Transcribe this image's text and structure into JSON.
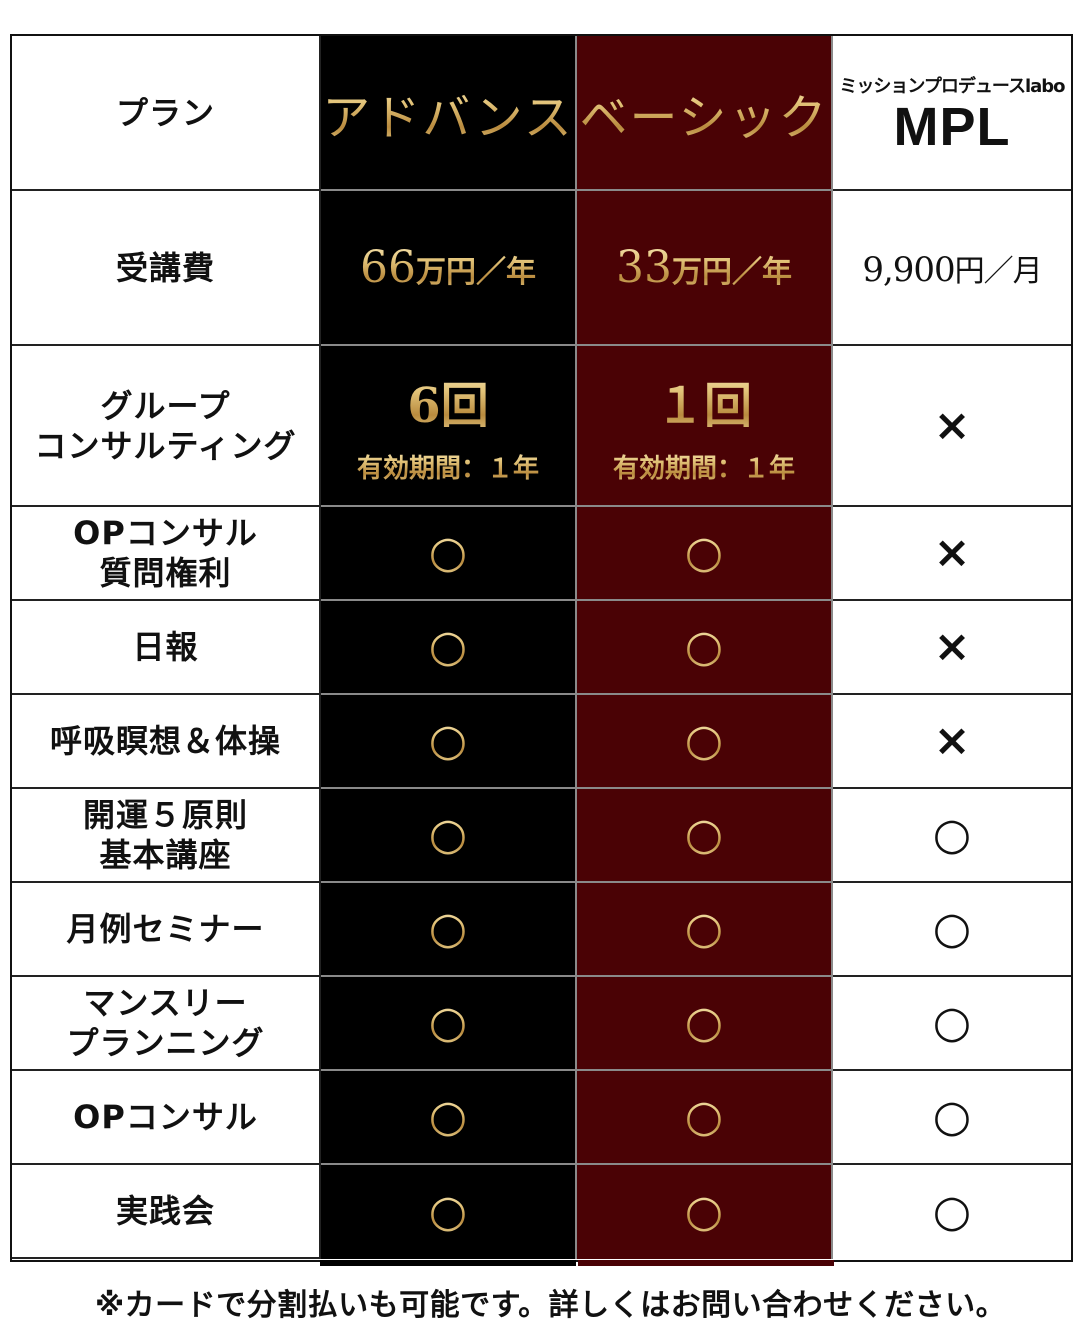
{
  "header": {
    "label": "プラン",
    "advance": "アドバンス",
    "basic": "ベーシック",
    "mpl_sub": "ミッションプロデュースlabo",
    "mpl_logo": "MPL"
  },
  "fee": {
    "label": "受講費",
    "advance_amount": "66",
    "advance_unit": "万円／年",
    "basic_amount": "33",
    "basic_unit": "万円／年",
    "mpl_amount": "9,900",
    "mpl_unit": "円／月"
  },
  "group": {
    "label_line1": "グループ",
    "label_line2": "コンサルティング",
    "advance_count": "6回",
    "advance_validity": "有効期間：１年",
    "basic_count": "１回",
    "basic_validity": "有効期間：１年",
    "mpl": "×"
  },
  "rows": [
    {
      "label_line1": "OPコンサル",
      "label_line2": "質問権利",
      "advance": "○",
      "basic": "○",
      "mpl": "×"
    },
    {
      "label_line1": "日報",
      "label_line2": "",
      "advance": "○",
      "basic": "○",
      "mpl": "×"
    },
    {
      "label_line1": "呼吸瞑想＆体操",
      "label_line2": "",
      "advance": "○",
      "basic": "○",
      "mpl": "×"
    },
    {
      "label_line1": "開運５原則",
      "label_line2": "基本講座",
      "advance": "○",
      "basic": "○",
      "mpl": "○"
    },
    {
      "label_line1": "月例セミナー",
      "label_line2": "",
      "advance": "○",
      "basic": "○",
      "mpl": "○"
    },
    {
      "label_line1": "マンスリー",
      "label_line2": "プランニング",
      "advance": "○",
      "basic": "○",
      "mpl": "○"
    },
    {
      "label_line1": "OPコンサル",
      "label_line2": "",
      "advance": "○",
      "basic": "○",
      "mpl": "○"
    },
    {
      "label_line1": "実践会",
      "label_line2": "",
      "advance": "○",
      "basic": "○",
      "mpl": "○"
    }
  ],
  "footnote": "※カードで分割払いも可能です。詳しくはお問い合わせください。",
  "colors": {
    "advance_bg": "#000000",
    "basic_bg": "#4a0205",
    "gold": "#d9b869"
  }
}
